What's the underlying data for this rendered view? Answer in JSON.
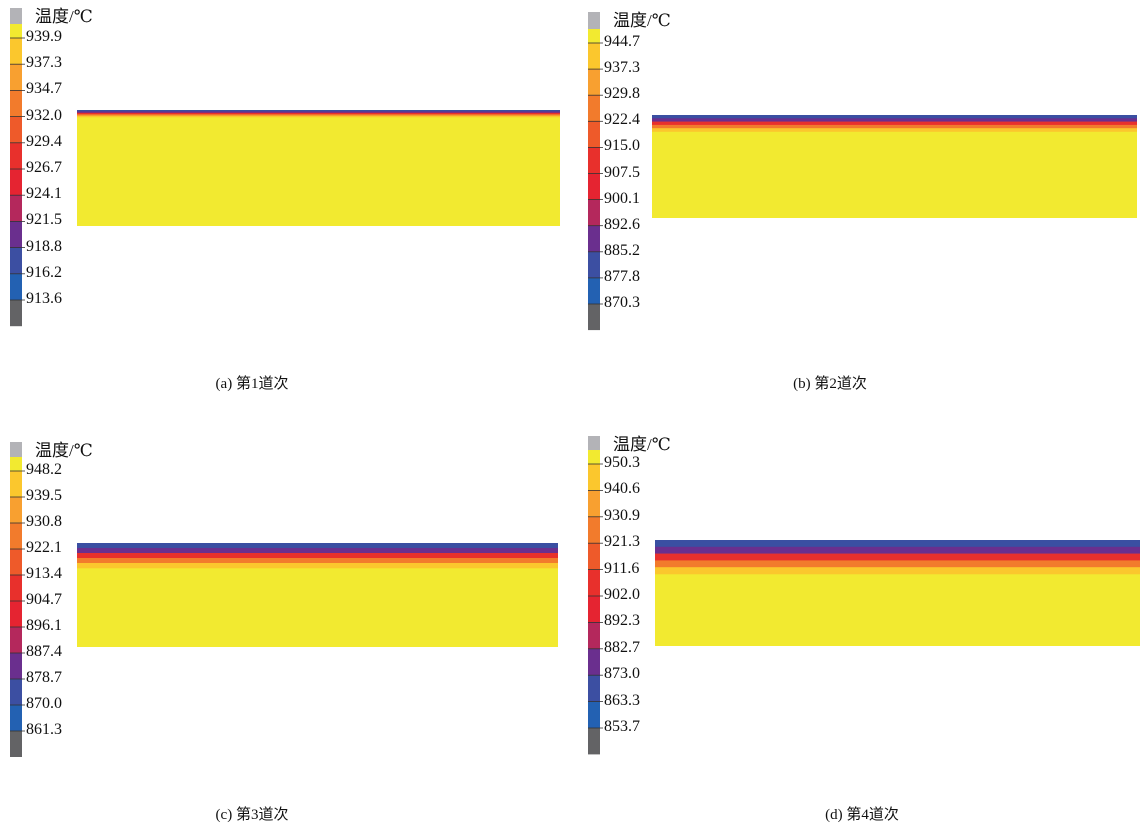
{
  "legend_title": "温度/℃",
  "band_colors": [
    "#b3b3b7",
    "#f2ea30",
    "#fbc72d",
    "#f8a030",
    "#f27b2c",
    "#ee5a2a",
    "#e8302c",
    "#e52431",
    "#b4285c",
    "#6a2f8e",
    "#3c4fa2",
    "#2361b2",
    "#636365"
  ],
  "slab_stripe_colors": [
    "#3a4fa2",
    "#6a2f8e",
    "#e8302c",
    "#f27b2c",
    "#fbc72d",
    "#f2ea30"
  ],
  "panels": [
    {
      "caption": "(a) 第1道次",
      "ticks": [
        "939.9",
        "937.3",
        "934.7",
        "932.0",
        "929.4",
        "926.7",
        "924.1",
        "921.5",
        "918.8",
        "916.2",
        "913.6"
      ]
    },
    {
      "caption": "(b) 第2道次",
      "ticks": [
        "944.7",
        "937.3",
        "929.8",
        "922.4",
        "915.0",
        "907.5",
        "900.1",
        "892.6",
        "885.2",
        "877.8",
        "870.3"
      ]
    },
    {
      "caption": "(c) 第3道次",
      "ticks": [
        "948.2",
        "939.5",
        "930.8",
        "922.1",
        "913.4",
        "904.7",
        "896.1",
        "887.4",
        "878.7",
        "870.0",
        "861.3"
      ]
    },
    {
      "caption": "(d) 第4道次",
      "ticks": [
        "950.3",
        "940.6",
        "930.9",
        "921.3",
        "911.6",
        "902.0",
        "892.3",
        "882.7",
        "873.0",
        "863.3",
        "853.7"
      ]
    }
  ]
}
